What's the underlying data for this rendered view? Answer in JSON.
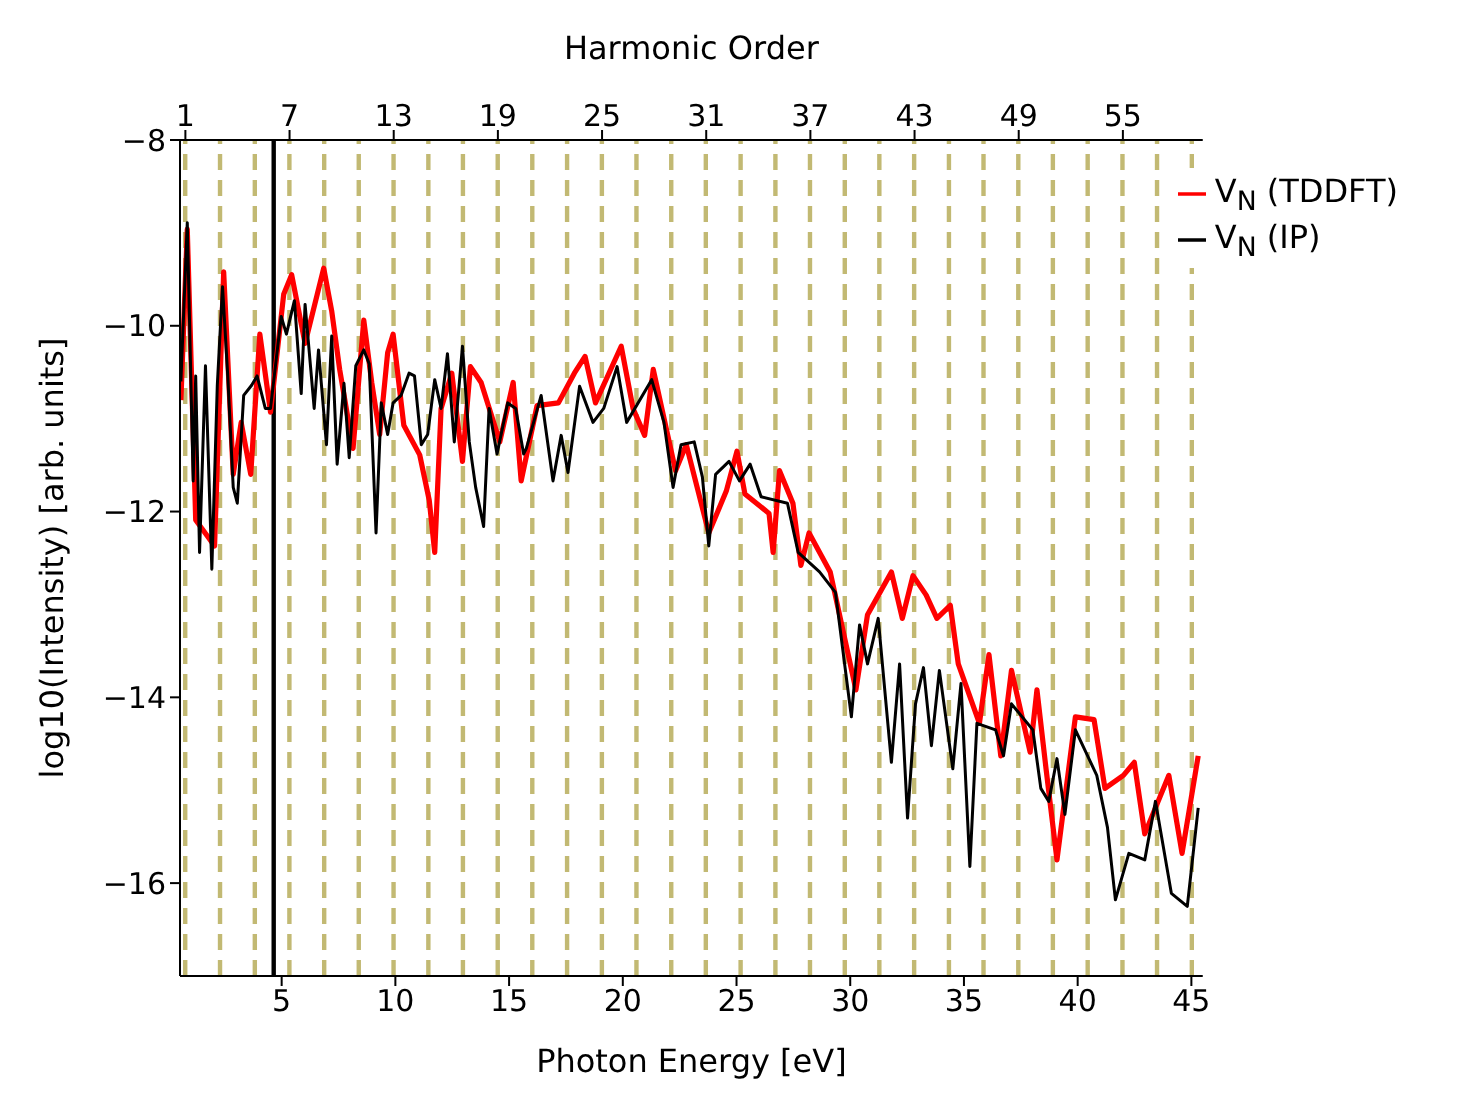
{
  "chart_data": {
    "type": "line",
    "xlabel": "Photon Energy [eV]",
    "ylabel": "log10(Intensity) [arb. units]",
    "x2label": "Harmonic Order",
    "xlim": [
      0.53,
      45.5
    ],
    "xticks": [
      5,
      10,
      15,
      20,
      25,
      30,
      35,
      40,
      45
    ],
    "x2lim": [
      0.69,
      59.6
    ],
    "x2ticks": [
      1,
      7,
      13,
      19,
      25,
      31,
      37,
      43,
      49,
      55
    ],
    "ylim": [
      -17,
      -8
    ],
    "yticks": [
      -8,
      -10,
      -12,
      -14,
      -16
    ],
    "grid": false,
    "legend": "top right",
    "marker": "none",
    "line_style": "solid",
    "series": [
      {
        "name": "V$_{N}$ (TDDFT)",
        "color": "#ff0000",
        "x": [
          0.57,
          0.85,
          1.22,
          2.05,
          2.45,
          2.87,
          3.22,
          3.64,
          4.04,
          4.51,
          5.09,
          5.44,
          6.03,
          6.85,
          7.2,
          7.55,
          8.14,
          8.61,
          8.96,
          9.31,
          9.66,
          9.9,
          10.37,
          11.07,
          11.49,
          11.73,
          12.01,
          12.48,
          12.95,
          13.3,
          13.77,
          14.59,
          15.18,
          15.53,
          16.23,
          17.17,
          17.87,
          18.34,
          18.8,
          19.93,
          20.45,
          20.96,
          21.34,
          22.32,
          22.79,
          23.78,
          24.55,
          25.02,
          25.37,
          26.43,
          26.61,
          26.89,
          27.48,
          27.83,
          28.19,
          29.12,
          30.25,
          30.76,
          31.81,
          32.29,
          32.76,
          33.34,
          33.81,
          34.4,
          34.75,
          35.68,
          36.1,
          36.62,
          37.09,
          37.91,
          38.21,
          38.61,
          39.09,
          39.9,
          40.72,
          41.2,
          42.01,
          42.49,
          42.95,
          44.01,
          44.59,
          45.3
        ],
        "values": [
          -10.8,
          -8.96,
          -12.09,
          -12.37,
          -9.42,
          -11.6,
          -11.04,
          -11.6,
          -10.09,
          -10.93,
          -9.66,
          -9.45,
          -10.19,
          -9.38,
          -9.84,
          -10.47,
          -11.32,
          -9.94,
          -10.61,
          -11.17,
          -10.29,
          -10.09,
          -11.07,
          -11.39,
          -11.88,
          -12.44,
          -10.89,
          -10.51,
          -11.46,
          -10.44,
          -10.61,
          -11.25,
          -10.61,
          -11.67,
          -10.86,
          -10.83,
          -10.51,
          -10.33,
          -10.83,
          -10.22,
          -10.89,
          -11.18,
          -10.47,
          -11.56,
          -11.28,
          -12.23,
          -11.78,
          -11.35,
          -11.81,
          -12.02,
          -12.44,
          -11.56,
          -11.91,
          -12.58,
          -12.23,
          -12.65,
          -13.92,
          -13.11,
          -12.65,
          -13.15,
          -12.69,
          -12.9,
          -13.15,
          -13.01,
          -13.64,
          -14.28,
          -13.54,
          -14.63,
          -13.71,
          -14.59,
          -13.92,
          -14.77,
          -15.75,
          -14.21,
          -14.24,
          -14.98,
          -14.84,
          -14.7,
          -15.47,
          -14.84,
          -15.68,
          -14.63
        ]
      },
      {
        "name": "V$_{N}$ (IP)",
        "color": "#000000",
        "x": [
          0.57,
          0.85,
          1.11,
          1.22,
          1.39,
          1.65,
          1.93,
          2.17,
          2.4,
          2.63,
          2.87,
          3.05,
          3.33,
          3.68,
          3.92,
          4.28,
          4.51,
          4.98,
          5.21,
          5.56,
          5.86,
          6.03,
          6.43,
          6.62,
          6.97,
          7.2,
          7.44,
          7.74,
          7.97,
          8.26,
          8.61,
          8.85,
          9.15,
          9.38,
          9.66,
          9.9,
          10.25,
          10.6,
          10.84,
          11.14,
          11.42,
          11.73,
          12.01,
          12.29,
          12.59,
          12.95,
          13.25,
          13.53,
          13.88,
          14.12,
          14.47,
          14.94,
          15.29,
          15.64,
          15.76,
          16.41,
          16.93,
          17.29,
          17.59,
          18.1,
          18.69,
          19.16,
          19.75,
          20.17,
          21.27,
          21.81,
          22.21,
          22.56,
          23.14,
          23.5,
          23.78,
          24.08,
          24.67,
          25.13,
          25.6,
          26.08,
          27.24,
          27.71,
          28.65,
          29.35,
          30.05,
          30.41,
          30.76,
          31.23,
          31.81,
          32.17,
          32.52,
          32.87,
          33.22,
          33.57,
          33.92,
          34.51,
          34.87,
          35.26,
          35.57,
          36.39,
          36.74,
          37.09,
          38.03,
          38.38,
          38.73,
          39.09,
          39.44,
          39.9,
          40.84,
          41.31,
          41.66,
          42.25,
          42.95,
          43.42,
          44.12,
          44.82,
          45.3
        ],
        "values": [
          -10.6,
          -8.89,
          -11.67,
          -10.54,
          -12.44,
          -10.43,
          -12.62,
          -10.64,
          -9.58,
          -10.54,
          -11.74,
          -11.91,
          -10.75,
          -10.64,
          -10.54,
          -10.89,
          -10.89,
          -9.9,
          -10.09,
          -9.73,
          -10.73,
          -9.77,
          -10.89,
          -10.26,
          -11.28,
          -10.11,
          -11.49,
          -10.62,
          -11.42,
          -10.43,
          -10.26,
          -10.41,
          -12.23,
          -10.83,
          -11.17,
          -10.83,
          -10.75,
          -10.51,
          -10.54,
          -11.28,
          -11.17,
          -10.58,
          -10.89,
          -10.3,
          -11.25,
          -10.22,
          -11.25,
          -11.74,
          -12.16,
          -10.89,
          -11.38,
          -10.83,
          -10.89,
          -11.38,
          -11.32,
          -10.75,
          -11.67,
          -11.18,
          -11.58,
          -10.65,
          -11.04,
          -10.89,
          -10.44,
          -11.04,
          -10.58,
          -11.04,
          -11.74,
          -11.28,
          -11.25,
          -11.63,
          -12.37,
          -11.6,
          -11.46,
          -11.67,
          -11.49,
          -11.84,
          -11.91,
          -12.44,
          -12.65,
          -12.87,
          -14.21,
          -13.22,
          -13.64,
          -13.15,
          -14.7,
          -13.64,
          -15.3,
          -14.07,
          -13.68,
          -14.52,
          -13.71,
          -14.77,
          -13.85,
          -15.82,
          -14.28,
          -14.35,
          -14.63,
          -14.07,
          -14.35,
          -14.98,
          -15.12,
          -14.66,
          -15.26,
          -14.35,
          -14.84,
          -15.4,
          -16.18,
          -15.68,
          -15.75,
          -15.12,
          -16.11,
          -16.25,
          -15.19
        ]
      }
    ],
    "ref_lines": [
      {
        "axis": "x",
        "value": 4.65,
        "color": "#000000",
        "line_style": "solid"
      },
      {
        "axis": "x",
        "value": 0.76,
        "color": "#c2b973",
        "line_style": "dashed"
      },
      {
        "axis": "x",
        "value": 2.29,
        "color": "#c2b973",
        "line_style": "dashed"
      },
      {
        "axis": "x",
        "value": 3.82,
        "color": "#c2b973",
        "line_style": "dashed"
      },
      {
        "axis": "x",
        "value": 5.34,
        "color": "#c2b973",
        "line_style": "dashed"
      },
      {
        "axis": "x",
        "value": 6.87,
        "color": "#c2b973",
        "line_style": "dashed"
      },
      {
        "axis": "x",
        "value": 8.39,
        "color": "#c2b973",
        "line_style": "dashed"
      },
      {
        "axis": "x",
        "value": 9.92,
        "color": "#c2b973",
        "line_style": "dashed"
      },
      {
        "axis": "x",
        "value": 11.45,
        "color": "#c2b973",
        "line_style": "dashed"
      },
      {
        "axis": "x",
        "value": 12.97,
        "color": "#c2b973",
        "line_style": "dashed"
      },
      {
        "axis": "x",
        "value": 14.5,
        "color": "#c2b973",
        "line_style": "dashed"
      },
      {
        "axis": "x",
        "value": 16.02,
        "color": "#c2b973",
        "line_style": "dashed"
      },
      {
        "axis": "x",
        "value": 17.55,
        "color": "#c2b973",
        "line_style": "dashed"
      },
      {
        "axis": "x",
        "value": 19.08,
        "color": "#c2b973",
        "line_style": "dashed"
      },
      {
        "axis": "x",
        "value": 20.6,
        "color": "#c2b973",
        "line_style": "dashed"
      },
      {
        "axis": "x",
        "value": 22.13,
        "color": "#c2b973",
        "line_style": "dashed"
      },
      {
        "axis": "x",
        "value": 23.65,
        "color": "#c2b973",
        "line_style": "dashed"
      },
      {
        "axis": "x",
        "value": 25.18,
        "color": "#c2b973",
        "line_style": "dashed"
      },
      {
        "axis": "x",
        "value": 26.71,
        "color": "#c2b973",
        "line_style": "dashed"
      },
      {
        "axis": "x",
        "value": 28.23,
        "color": "#c2b973",
        "line_style": "dashed"
      },
      {
        "axis": "x",
        "value": 29.76,
        "color": "#c2b973",
        "line_style": "dashed"
      },
      {
        "axis": "x",
        "value": 31.28,
        "color": "#c2b973",
        "line_style": "dashed"
      },
      {
        "axis": "x",
        "value": 32.81,
        "color": "#c2b973",
        "line_style": "dashed"
      },
      {
        "axis": "x",
        "value": 34.34,
        "color": "#c2b973",
        "line_style": "dashed"
      },
      {
        "axis": "x",
        "value": 35.86,
        "color": "#c2b973",
        "line_style": "dashed"
      },
      {
        "axis": "x",
        "value": 37.39,
        "color": "#c2b973",
        "line_style": "dashed"
      },
      {
        "axis": "x",
        "value": 38.91,
        "color": "#c2b973",
        "line_style": "dashed"
      },
      {
        "axis": "x",
        "value": 40.44,
        "color": "#c2b973",
        "line_style": "dashed"
      },
      {
        "axis": "x",
        "value": 41.97,
        "color": "#c2b973",
        "line_style": "dashed"
      },
      {
        "axis": "x",
        "value": 43.49,
        "color": "#c2b973",
        "line_style": "dashed"
      },
      {
        "axis": "x",
        "value": 45.02,
        "color": "#c2b973",
        "line_style": "dashed"
      }
    ]
  }
}
